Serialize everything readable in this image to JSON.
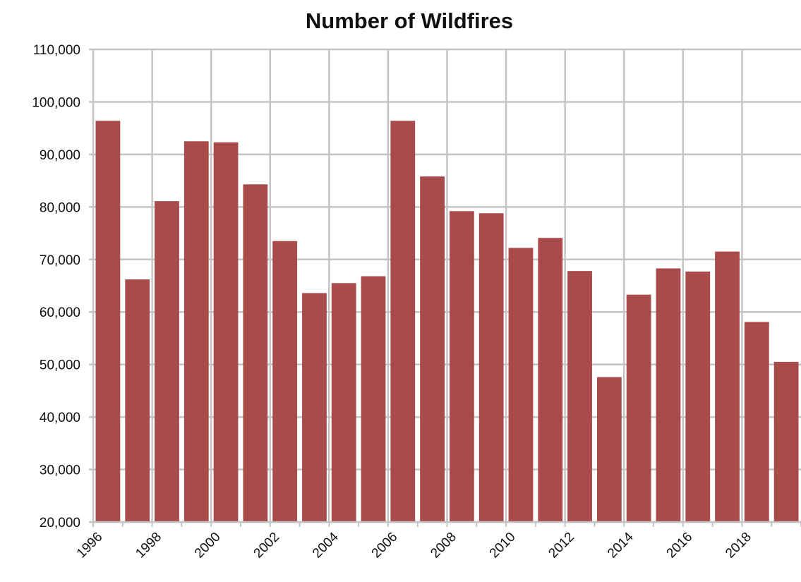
{
  "chart_data": {
    "type": "bar",
    "title": "Number of Wildfires",
    "xlabel": "",
    "ylabel": "",
    "categories": [
      "1996",
      "1997",
      "1998",
      "1999",
      "2000",
      "2001",
      "2002",
      "2003",
      "2004",
      "2005",
      "2006",
      "2007",
      "2008",
      "2009",
      "2010",
      "2011",
      "2012",
      "2013",
      "2014",
      "2015",
      "2016",
      "2017",
      "2018",
      "2019"
    ],
    "values": [
      96400,
      66200,
      81100,
      92500,
      92300,
      84300,
      73500,
      63600,
      65500,
      66800,
      96400,
      85800,
      79200,
      78800,
      72200,
      74100,
      67800,
      47600,
      63300,
      68300,
      67700,
      71500,
      58100,
      50500
    ],
    "x_tick_labels": [
      "1996",
      "1998",
      "2000",
      "2002",
      "2004",
      "2006",
      "2008",
      "2010",
      "2012",
      "2014",
      "2016",
      "2018"
    ],
    "y_tick_labels": [
      "20,000",
      "30,000",
      "40,000",
      "50,000",
      "60,000",
      "70,000",
      "80,000",
      "90,000",
      "100,000",
      "110,000"
    ],
    "ylim": [
      20000,
      110000
    ],
    "grid": true,
    "legend": "none",
    "colors": {
      "bar": "#a84b4a",
      "grid": "#c4c4c4"
    }
  }
}
